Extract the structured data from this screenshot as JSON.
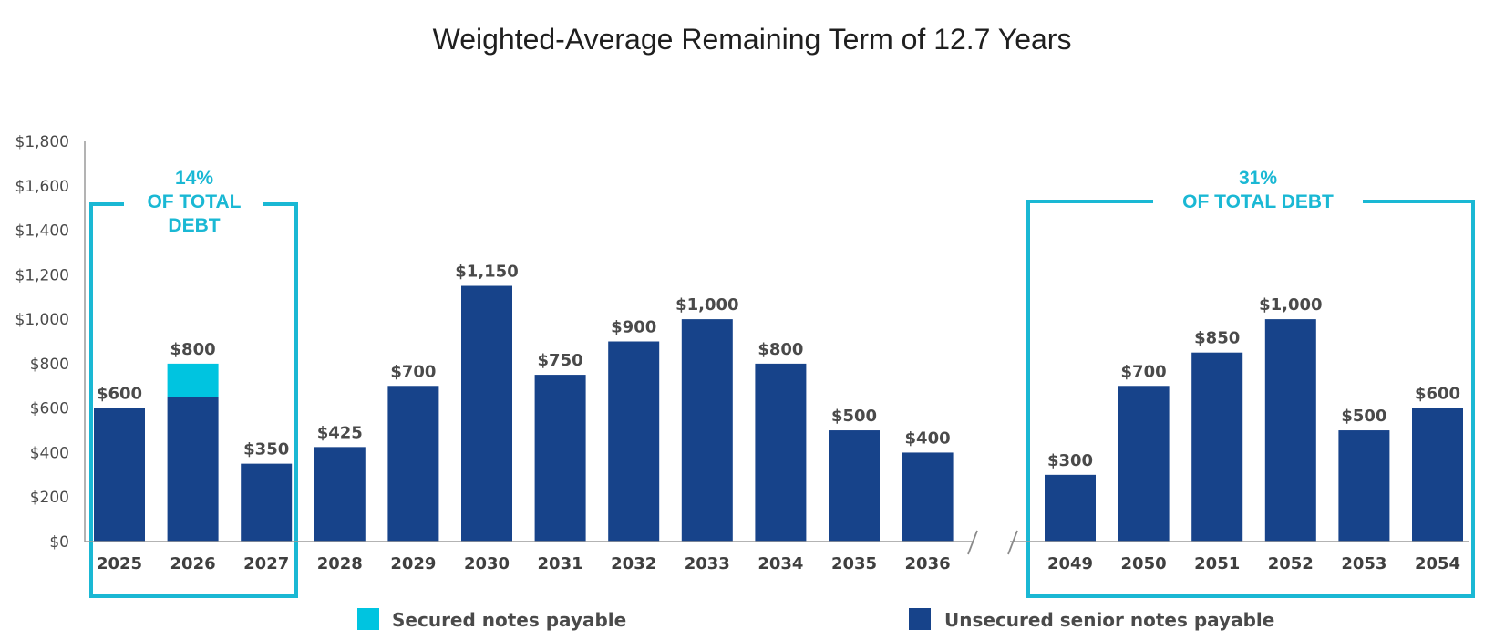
{
  "chart_data": {
    "type": "bar",
    "stacked": true,
    "title": "Weighted-Average Remaining Term of 12.7 Years",
    "xlabel": "",
    "ylabel": "",
    "ylim": [
      0,
      1800
    ],
    "yticks": [
      "$0",
      "$200",
      "$400",
      "$600",
      "$800",
      "$1,000",
      "$1,200",
      "$1,400",
      "$1,600",
      "$1,800"
    ],
    "axis_break_between": [
      "2036",
      "2049"
    ],
    "categories": [
      "2025",
      "2026",
      "2027",
      "2028",
      "2029",
      "2030",
      "2031",
      "2032",
      "2033",
      "2034",
      "2035",
      "2036",
      "2049",
      "2050",
      "2051",
      "2052",
      "2053",
      "2054"
    ],
    "series": [
      {
        "name": "Unsecured senior notes payable",
        "color": "#17438a",
        "values": [
          600,
          650,
          350,
          425,
          700,
          1150,
          750,
          900,
          1000,
          800,
          500,
          400,
          300,
          700,
          850,
          1000,
          500,
          600
        ]
      },
      {
        "name": "Secured notes payable",
        "color": "#00c4e0",
        "values": [
          0,
          150,
          0,
          0,
          0,
          0,
          0,
          0,
          0,
          0,
          0,
          0,
          0,
          0,
          0,
          0,
          0,
          0
        ]
      }
    ],
    "data_labels": [
      "$600",
      "$800",
      "$350",
      "$425",
      "$700",
      "$1,150",
      "$750",
      "$900",
      "$1,000",
      "$800",
      "$500",
      "$400",
      "$300",
      "$700",
      "$850",
      "$1,000",
      "$500",
      "$600"
    ],
    "legend": {
      "placement": "bottom",
      "items": [
        {
          "label": "Secured notes payable",
          "color": "#00c4e0"
        },
        {
          "label": "Unsecured senior notes payable",
          "color": "#17438a"
        }
      ]
    },
    "annotations": [
      {
        "lines": [
          "14%",
          "OF TOTAL",
          "DEBT"
        ],
        "span": [
          "2025",
          "2027"
        ],
        "color": "#1ab8d4"
      },
      {
        "lines": [
          "31%",
          "OF TOTAL DEBT"
        ],
        "span": [
          "2049",
          "2054"
        ],
        "color": "#1ab8d4"
      }
    ]
  }
}
